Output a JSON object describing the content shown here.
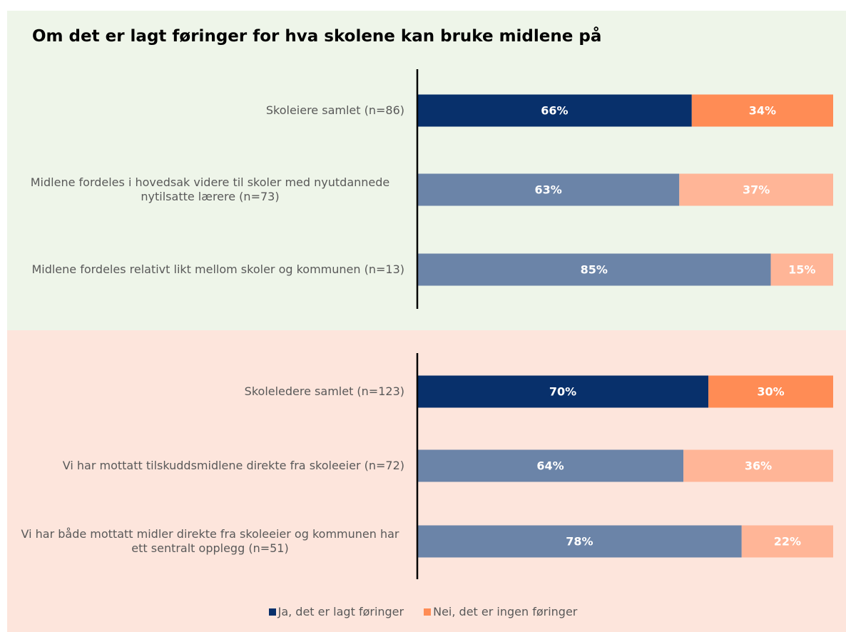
{
  "chart_data": [
    {
      "type": "bar",
      "orientation": "horizontal",
      "stacked": true,
      "title": "Om det er lagt føringer for hva skolene kan bruke midlene på",
      "background": "#eef5e9",
      "xlim": [
        0,
        100
      ],
      "categories": [
        "Skoleiere samlet (n=86)",
        "Midlene fordeles i hovedsak videre til skoler med nyutdannede nytilsatte lærere (n=73)",
        "Midlene fordeles relativt likt mellom skoler og kommunen (n=13)"
      ],
      "series": [
        {
          "name": "Ja, det er lagt føringer",
          "colors": [
            "#08306b",
            "#6b84a8",
            "#6b84a8"
          ],
          "values": [
            66,
            63,
            85
          ],
          "value_labels": [
            "66%",
            "63%",
            "85%"
          ]
        },
        {
          "name": "Nei, det er ingen føringer",
          "colors": [
            "#ff8c55",
            "#ffb597",
            "#ffb597"
          ],
          "values": [
            34,
            37,
            15
          ],
          "value_labels": [
            "34%",
            "37%",
            "15%"
          ]
        }
      ]
    },
    {
      "type": "bar",
      "orientation": "horizontal",
      "stacked": true,
      "background": "#fde5dc",
      "xlim": [
        0,
        100
      ],
      "categories": [
        "Skoleledere samlet (n=123)",
        "Vi har mottatt tilskuddsmidlene direkte fra skoleeier (n=72)",
        "Vi har både mottatt midler direkte fra skoleeier og kommunen har ett sentralt opplegg (n=51)"
      ],
      "series": [
        {
          "colors": [
            "#08306b",
            "#6b84a8",
            "#6b84a8"
          ],
          "values": [
            70,
            64,
            78
          ],
          "value_labels": [
            "70%",
            "64%",
            "78%"
          ]
        },
        {
          "colors": [
            "#ff8c55",
            "#ffb597",
            "#ffb597"
          ],
          "values": [
            30,
            36,
            22
          ],
          "value_labels": [
            "30%",
            "36%",
            "22%"
          ]
        }
      ]
    }
  ]
}
